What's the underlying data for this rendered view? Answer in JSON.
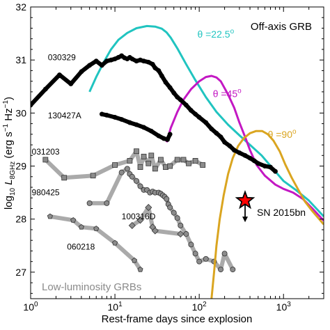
{
  "chart_data": {
    "type": "line",
    "xlabel": "Rest-frame days since explosion",
    "ylabel_prefix": "log",
    "ylabel_sub": "10",
    "ylabel_L": "L",
    "ylabel_Lsub": "8GHz",
    "ylabel_units": "(erg s",
    "ylabel_units_exp": "−1",
    "ylabel_hz": "Hz",
    "ylabel_hz_exp": "−1",
    "ylabel_close": ")",
    "xscale": "log",
    "xlim": [
      1,
      3000
    ],
    "ylim": [
      26.5,
      32
    ],
    "xtick_values": [
      1,
      10,
      100,
      1000
    ],
    "xtick_labels": [
      {
        "base": "10",
        "exp": "0"
      },
      {
        "base": "10",
        "exp": "1"
      },
      {
        "base": "10",
        "exp": "2"
      },
      {
        "base": "10",
        "exp": "3"
      }
    ],
    "ytick_values": [
      27,
      28,
      29,
      30,
      31,
      32
    ],
    "ytick_labels": [
      "27",
      "28",
      "29",
      "30",
      "31",
      "32"
    ],
    "annotations": {
      "offaxis_title": "Off-axis GRB",
      "lowlum": "Low-luminosity GRBs",
      "sn_label": "SN 2015bn",
      "theta_prefix": "θ =",
      "theta_suffix": "o"
    },
    "colors": {
      "theta_22_5": "#20c4c0",
      "theta_45": "#c318c3",
      "theta_90": "#daa520",
      "grb": "#000000",
      "lowlum": "#aaaaaa",
      "marker": "#8c8c8c",
      "star": "#ff0000"
    },
    "models": [
      {
        "label": "22.5",
        "color": "#20c4c0",
        "x": [
          5,
          6,
          7.5,
          9,
          11,
          14,
          18,
          24,
          30,
          36,
          41,
          46,
          55,
          70,
          90,
          120,
          160,
          220,
          300,
          400,
          550,
          750,
          1000,
          1400,
          2000,
          3000
        ],
        "y": [
          30.4,
          30.68,
          30.98,
          31.2,
          31.38,
          31.51,
          31.6,
          31.64,
          31.63,
          31.59,
          31.52,
          31.42,
          31.22,
          30.92,
          30.62,
          30.3,
          30.02,
          29.78,
          29.58,
          29.4,
          29.2,
          28.95,
          28.72,
          28.55,
          28.35,
          28.05
        ]
      },
      {
        "label": "45",
        "color": "#c318c3",
        "x": [
          41,
          46,
          55,
          65,
          80,
          100,
          120,
          140,
          160,
          180,
          220,
          260,
          300,
          350,
          400,
          480,
          600,
          800,
          1000,
          1300,
          1700,
          2200,
          3000
        ],
        "y": [
          29.45,
          29.72,
          30.02,
          30.25,
          30.45,
          30.6,
          30.68,
          30.7,
          30.67,
          30.6,
          30.35,
          30.1,
          29.82,
          29.55,
          29.3,
          29.02,
          28.82,
          28.65,
          28.57,
          28.5,
          28.38,
          28.2,
          27.97
        ]
      },
      {
        "label": "90",
        "color": "#daa520",
        "x": [
          140,
          150,
          160,
          175,
          195,
          220,
          250,
          290,
          340,
          400,
          470,
          560,
          650,
          760,
          900,
          1050,
          1250,
          1500,
          1800,
          2200,
          3000
        ],
        "y": [
          26.5,
          27.0,
          27.5,
          28.0,
          28.45,
          28.85,
          29.15,
          29.38,
          29.53,
          29.62,
          29.66,
          29.66,
          29.6,
          29.48,
          29.28,
          29.03,
          28.78,
          28.55,
          28.33,
          28.15,
          27.9
        ]
      }
    ],
    "theta_labels": [
      {
        "label": "22.5",
        "x": 95,
        "y": 31.42
      },
      {
        "label": "45",
        "x": 145,
        "y": 30.3
      },
      {
        "label": "90",
        "x": 650,
        "y": 29.53
      }
    ],
    "grbs": [
      {
        "name": "030329",
        "x": [
          1,
          1.5,
          2.2,
          3,
          4,
          5,
          6,
          7,
          8,
          9,
          10,
          11,
          12,
          13,
          14,
          15,
          16,
          18,
          20,
          22,
          25,
          28,
          30,
          33,
          36,
          40,
          45,
          50,
          55,
          60,
          70,
          80,
          90,
          100,
          120,
          140,
          160,
          180,
          200,
          230,
          260,
          300,
          350,
          400,
          450,
          500,
          600,
          700,
          800
        ],
        "y": [
          30.15,
          30.45,
          30.72,
          30.55,
          30.78,
          30.9,
          30.98,
          30.9,
          30.98,
          31.0,
          31.02,
          31.05,
          31.08,
          31.04,
          31.02,
          31.05,
          31.02,
          30.98,
          31.0,
          30.98,
          30.96,
          30.92,
          30.85,
          30.8,
          30.7,
          30.58,
          30.48,
          30.38,
          30.3,
          30.25,
          30.15,
          30.05,
          29.98,
          29.92,
          29.82,
          29.7,
          29.62,
          29.55,
          29.45,
          29.38,
          29.3,
          29.25,
          29.2,
          29.15,
          29.1,
          29.05,
          29.0,
          28.98,
          28.9
        ]
      },
      {
        "name": "130427A",
        "x": [
          7,
          8,
          10,
          12,
          15,
          18,
          22,
          27,
          33,
          38,
          42,
          45
        ],
        "y": [
          29.98,
          29.96,
          29.92,
          29.88,
          29.82,
          29.78,
          29.73,
          29.66,
          29.57,
          29.52,
          29.5,
          29.6
        ]
      }
    ],
    "lowlum_grbs": [
      {
        "name": "031203",
        "marker": "square",
        "x": [
          1.5,
          2.5,
          5.5,
          10,
          15,
          18,
          20,
          22,
          25,
          27,
          30,
          35,
          40,
          45,
          55,
          65,
          75,
          90,
          110
        ],
        "y": [
          29.12,
          28.78,
          28.82,
          29.02,
          29.1,
          29.28,
          28.98,
          29.18,
          29.05,
          29.2,
          28.95,
          29.12,
          28.98,
          29.0,
          29.12,
          29.12,
          29.05,
          29.1,
          29.02
        ]
      },
      {
        "name": "980425",
        "marker": "circle",
        "x": [
          5,
          8,
          12,
          14,
          15,
          16,
          18,
          20,
          22,
          24,
          26,
          28,
          30,
          33,
          35,
          37,
          39,
          41,
          43,
          45,
          50,
          55,
          60,
          70,
          80,
          90,
          100,
          120,
          150,
          180,
          200,
          250
        ],
        "y": [
          28.3,
          28.3,
          28.88,
          28.95,
          28.85,
          28.8,
          28.72,
          28.62,
          28.55,
          28.55,
          28.5,
          28.52,
          28.5,
          28.5,
          28.48,
          28.45,
          28.42,
          28.38,
          28.28,
          28.22,
          28.12,
          28.02,
          27.88,
          27.72,
          27.52,
          27.35,
          27.2,
          27.25,
          27.2,
          27.05,
          27.35,
          27.05
        ]
      },
      {
        "name": "100316D",
        "marker": "diamond",
        "x": [
          16,
          20,
          25,
          28,
          30,
          60
        ],
        "y": [
          27.88,
          27.98,
          28.22,
          27.85,
          27.78,
          27.72
        ]
      },
      {
        "name": "060218",
        "marker": "pentagon",
        "x": [
          1.7,
          3.2,
          4,
          6,
          10,
          17,
          20
        ],
        "y": [
          28.05,
          27.98,
          27.85,
          27.82,
          27.55,
          27.22,
          27.05
        ]
      }
    ],
    "grb_labels": [
      {
        "name": "030329",
        "x": 1.6,
        "y": 31.05
      },
      {
        "name": "130427A",
        "x": 1.6,
        "y": 29.95
      },
      {
        "name": "031203",
        "x": 1.03,
        "y": 29.27
      },
      {
        "name": "980425",
        "x": 1.03,
        "y": 28.5
      },
      {
        "name": "100316D",
        "x": 12,
        "y": 28.05
      },
      {
        "name": "060218",
        "x": 2.7,
        "y": 27.48
      }
    ],
    "sn2015bn": {
      "x": 350,
      "y": 28.35,
      "upper_limit": true
    }
  }
}
